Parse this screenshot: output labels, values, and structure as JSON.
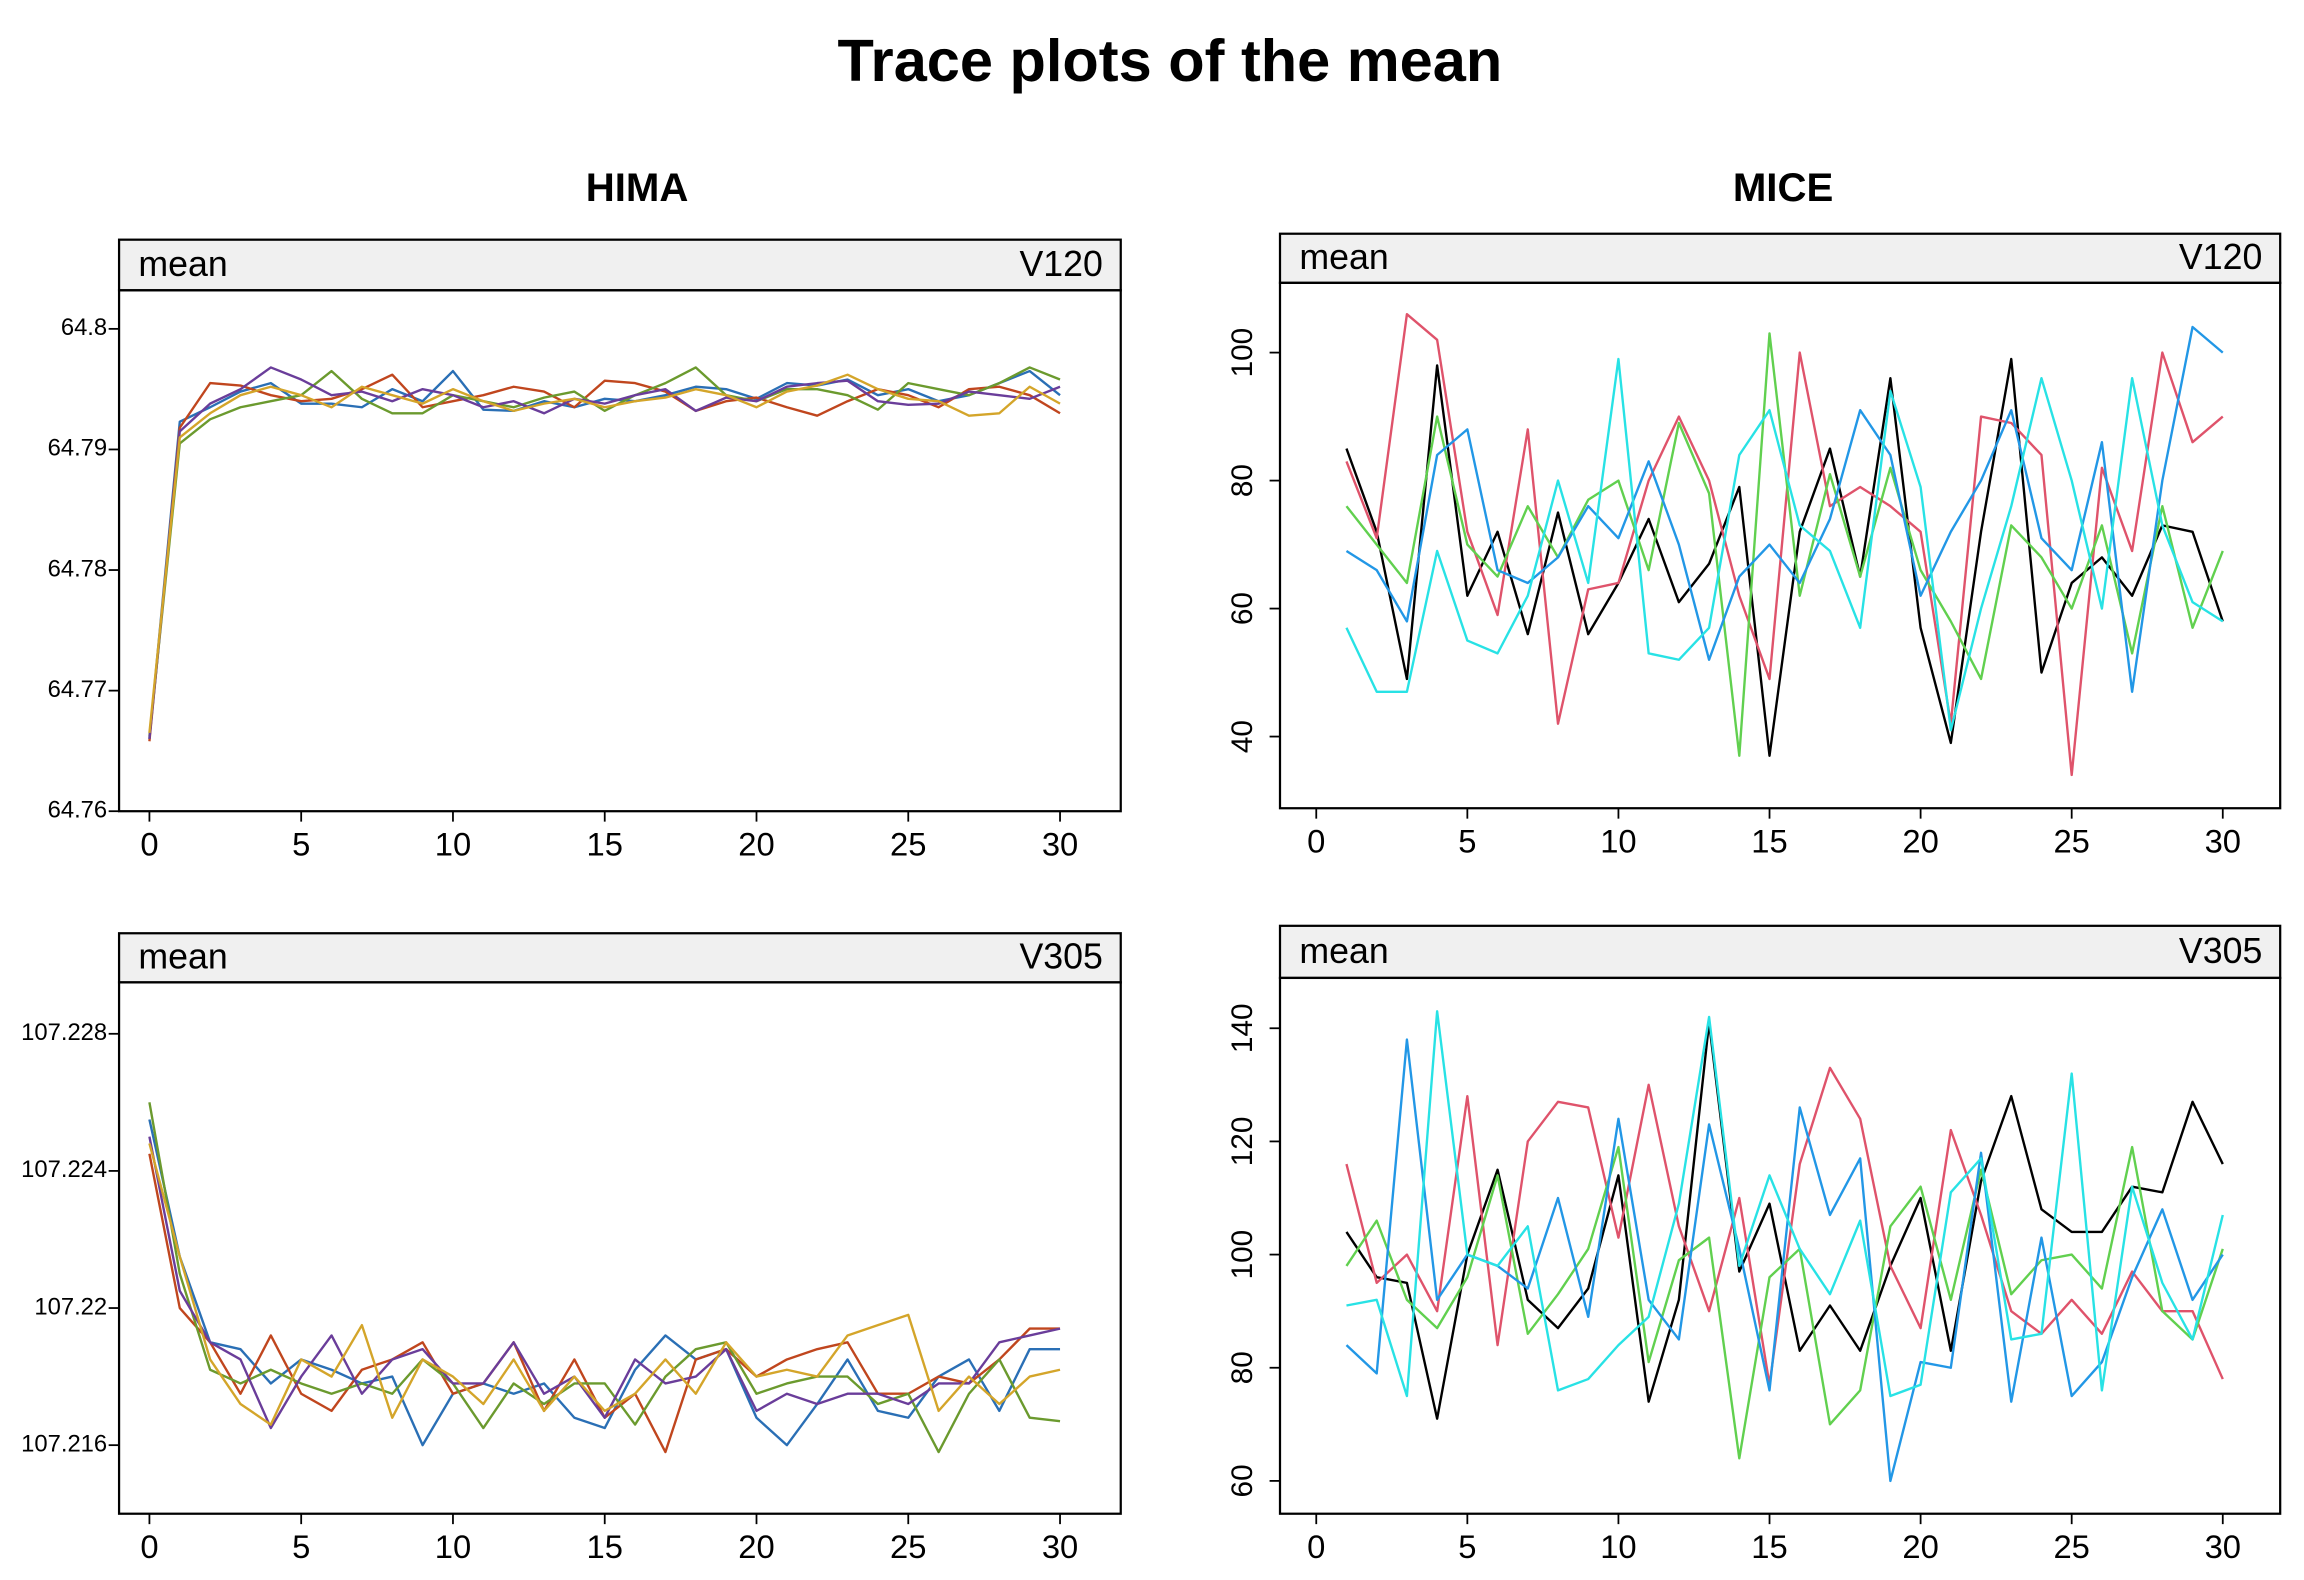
{
  "title": "Trace plots of the mean",
  "column_titles": [
    "HIMA",
    "MICE"
  ],
  "chart_data": [
    {
      "type": "line",
      "strip_left": "mean",
      "strip_right": "V120",
      "x": [
        0,
        1,
        2,
        3,
        4,
        5,
        6,
        7,
        8,
        9,
        10,
        11,
        12,
        13,
        14,
        15,
        16,
        17,
        18,
        19,
        20,
        21,
        22,
        23,
        24,
        25,
        26,
        27,
        28,
        29,
        30
      ],
      "xlim": [
        -1,
        32
      ],
      "xticks": [
        0,
        5,
        10,
        15,
        20,
        25,
        30
      ],
      "ylim": [
        64.76,
        64.8032
      ],
      "yticks": [
        64.76,
        64.77,
        64.78,
        64.79,
        64.8
      ],
      "series": [
        {
          "color": "#2a6fb5",
          "values": [
            64.766,
            64.7923,
            64.7935,
            64.7948,
            64.7955,
            64.7938,
            64.7938,
            64.7935,
            64.795,
            64.794,
            64.7965,
            64.7933,
            64.7932,
            64.794,
            64.7935,
            64.7942,
            64.794,
            64.7945,
            64.7952,
            64.795,
            64.7942,
            64.7955,
            64.7953,
            64.7958,
            64.7945,
            64.795,
            64.794,
            64.7945,
            64.7955,
            64.7965,
            64.7945
          ]
        },
        {
          "color": "#c0461e",
          "values": [
            64.7658,
            64.7918,
            64.7955,
            64.7953,
            64.7945,
            64.794,
            64.7942,
            64.795,
            64.7962,
            64.7935,
            64.794,
            64.7945,
            64.7952,
            64.7948,
            64.7935,
            64.7957,
            64.7955,
            64.7948,
            64.7932,
            64.794,
            64.7943,
            64.7935,
            64.7928,
            64.794,
            64.795,
            64.7945,
            64.7935,
            64.795,
            64.7952,
            64.7945,
            64.793
          ]
        },
        {
          "color": "#6b9a2e",
          "values": [
            64.7662,
            64.7905,
            64.7925,
            64.7935,
            64.794,
            64.7945,
            64.7965,
            64.7942,
            64.793,
            64.793,
            64.7945,
            64.794,
            64.7935,
            64.7943,
            64.7948,
            64.7932,
            64.7945,
            64.7955,
            64.7968,
            64.7945,
            64.794,
            64.795,
            64.795,
            64.7945,
            64.7933,
            64.7955,
            64.795,
            64.7945,
            64.7955,
            64.7968,
            64.7958
          ]
        },
        {
          "color": "#6a3d9a",
          "values": [
            64.766,
            64.7915,
            64.7938,
            64.795,
            64.7968,
            64.7958,
            64.7945,
            64.7948,
            64.794,
            64.795,
            64.7945,
            64.7935,
            64.794,
            64.793,
            64.7942,
            64.7938,
            64.7945,
            64.795,
            64.7932,
            64.7943,
            64.794,
            64.7952,
            64.7955,
            64.7957,
            64.794,
            64.7937,
            64.7938,
            64.7948,
            64.7945,
            64.7942,
            64.7952
          ]
        },
        {
          "color": "#d4a52a",
          "values": [
            64.7665,
            64.791,
            64.793,
            64.7945,
            64.7952,
            64.7945,
            64.7935,
            64.7952,
            64.7945,
            64.7938,
            64.795,
            64.794,
            64.7932,
            64.7938,
            64.7942,
            64.7935,
            64.794,
            64.7943,
            64.795,
            64.7945,
            64.7935,
            64.7948,
            64.7953,
            64.7962,
            64.795,
            64.7942,
            64.794,
            64.7928,
            64.793,
            64.7952,
            64.7938
          ]
        }
      ]
    },
    {
      "type": "line",
      "strip_left": "mean",
      "strip_right": "V120",
      "x": [
        1,
        2,
        3,
        4,
        5,
        6,
        7,
        8,
        9,
        10,
        11,
        12,
        13,
        14,
        15,
        16,
        17,
        18,
        19,
        20,
        21,
        22,
        23,
        24,
        25,
        26,
        27,
        28,
        29,
        30
      ],
      "xlim": [
        -1.2,
        31.9
      ],
      "xticks": [
        0,
        5,
        10,
        15,
        20,
        25,
        30
      ],
      "ylim": [
        28.8,
        110.9
      ],
      "yticks": [
        40,
        60,
        80,
        100
      ],
      "series": [
        {
          "color": "#000000",
          "values": [
            85,
            72,
            49,
            98,
            62,
            72,
            56,
            75,
            56,
            64,
            74,
            61,
            67,
            79,
            37,
            72,
            85,
            65,
            96,
            57,
            39,
            72,
            99,
            50,
            64,
            68,
            62,
            73,
            72,
            58
          ]
        },
        {
          "color": "#df536b",
          "values": [
            83,
            71,
            106,
            102,
            72,
            59,
            88,
            42,
            63,
            64,
            80,
            90,
            80,
            62,
            49,
            100,
            76,
            79,
            76,
            72,
            42,
            90,
            89,
            84,
            34,
            82,
            69,
            100,
            86,
            90
          ]
        },
        {
          "color": "#61d04f",
          "values": [
            76,
            70,
            64,
            90,
            70,
            65,
            76,
            68,
            77,
            80,
            66,
            89,
            78,
            37,
            103,
            62,
            81,
            65,
            82,
            66,
            58,
            49,
            73,
            68,
            60,
            73,
            53,
            76,
            57,
            69
          ]
        },
        {
          "color": "#2297e6",
          "values": [
            69,
            66,
            58,
            84,
            88,
            66,
            64,
            68,
            76,
            71,
            83,
            70,
            52,
            65,
            70,
            64,
            74,
            91,
            84,
            62,
            72,
            80,
            91,
            71,
            66,
            86,
            47,
            80,
            104,
            100
          ]
        },
        {
          "color": "#28e2e5",
          "values": [
            57,
            47,
            47,
            69,
            55,
            53,
            62,
            80,
            64,
            99,
            53,
            52,
            57,
            84,
            91,
            73,
            69,
            57,
            94,
            79,
            41,
            60,
            76,
            96,
            80,
            60,
            96,
            73,
            61,
            58
          ]
        }
      ]
    },
    {
      "type": "line",
      "strip_left": "mean",
      "strip_right": "V305",
      "x": [
        0,
        1,
        2,
        3,
        4,
        5,
        6,
        7,
        8,
        9,
        10,
        11,
        12,
        13,
        14,
        15,
        16,
        17,
        18,
        19,
        20,
        21,
        22,
        23,
        24,
        25,
        26,
        27,
        28,
        29,
        30
      ],
      "xlim": [
        -1,
        32
      ],
      "xticks": [
        0,
        5,
        10,
        15,
        20,
        25,
        30
      ],
      "ylim": [
        107.214,
        107.2295
      ],
      "yticks": [
        107.216,
        107.22,
        107.224,
        107.228
      ],
      "series": [
        {
          "color": "#2a6fb5",
          "values": [
            107.2255,
            107.2215,
            107.219,
            107.2188,
            107.2178,
            107.2185,
            107.2182,
            107.2178,
            107.218,
            107.216,
            107.2175,
            107.2178,
            107.2175,
            107.2178,
            107.2168,
            107.2165,
            107.2182,
            107.2192,
            107.2185,
            107.2188,
            107.2168,
            107.216,
            107.2172,
            107.2185,
            107.217,
            107.2168,
            107.218,
            107.2185,
            107.217,
            107.2188,
            107.2188
          ]
        },
        {
          "color": "#c0461e",
          "values": [
            107.2245,
            107.22,
            107.219,
            107.2175,
            107.2192,
            107.2175,
            107.217,
            107.2182,
            107.2185,
            107.219,
            107.2175,
            107.2178,
            107.219,
            107.217,
            107.2185,
            107.2168,
            107.2175,
            107.2158,
            107.2185,
            107.2188,
            107.218,
            107.2185,
            107.2188,
            107.219,
            107.2175,
            107.2175,
            107.218,
            107.2178,
            107.2185,
            107.2194,
            107.2194
          ]
        },
        {
          "color": "#6b9a2e",
          "values": [
            107.226,
            107.221,
            107.2182,
            107.2178,
            107.2182,
            107.2178,
            107.2175,
            107.2178,
            107.2175,
            107.2185,
            107.2178,
            107.2165,
            107.2178,
            107.2172,
            107.2178,
            107.2178,
            107.2166,
            107.218,
            107.2188,
            107.219,
            107.2175,
            107.2178,
            107.218,
            107.218,
            107.2172,
            107.2175,
            107.2158,
            107.2175,
            107.2185,
            107.2168,
            107.2167
          ]
        },
        {
          "color": "#6a3d9a",
          "values": [
            107.225,
            107.2205,
            107.219,
            107.2185,
            107.2165,
            107.218,
            107.2192,
            107.2175,
            107.2185,
            107.2188,
            107.2178,
            107.2178,
            107.219,
            107.2175,
            107.218,
            107.2168,
            107.2185,
            107.2178,
            107.218,
            107.2188,
            107.217,
            107.2175,
            107.2172,
            107.2175,
            107.2175,
            107.2172,
            107.2178,
            107.2178,
            107.219,
            107.2192,
            107.2194
          ]
        },
        {
          "color": "#d4a52a",
          "values": [
            107.2248,
            107.2215,
            107.2185,
            107.2172,
            107.2166,
            107.2185,
            107.218,
            107.2195,
            107.2168,
            107.2185,
            107.218,
            107.2172,
            107.2185,
            107.217,
            107.218,
            107.217,
            107.2175,
            107.2185,
            107.2175,
            107.219,
            107.218,
            107.2182,
            107.218,
            107.2192,
            107.2195,
            107.2198,
            107.217,
            107.218,
            107.2172,
            107.218,
            107.2182
          ]
        }
      ]
    },
    {
      "type": "line",
      "strip_left": "mean",
      "strip_right": "V305",
      "x": [
        1,
        2,
        3,
        4,
        5,
        6,
        7,
        8,
        9,
        10,
        11,
        12,
        13,
        14,
        15,
        16,
        17,
        18,
        19,
        20,
        21,
        22,
        23,
        24,
        25,
        26,
        27,
        28,
        29,
        30
      ],
      "xlim": [
        -1.2,
        31.9
      ],
      "xticks": [
        0,
        5,
        10,
        15,
        20,
        25,
        30
      ],
      "ylim": [
        54.2,
        148.9
      ],
      "yticks": [
        60,
        80,
        100,
        120,
        140
      ],
      "series": [
        {
          "color": "#000000",
          "values": [
            104,
            96,
            95,
            71,
            100,
            115,
            92,
            87,
            94,
            114,
            74,
            92,
            141,
            97,
            109,
            83,
            91,
            83,
            98,
            110,
            83,
            113,
            128,
            108,
            104,
            104,
            112,
            111,
            127,
            116
          ]
        },
        {
          "color": "#df536b",
          "values": [
            116,
            95,
            100,
            90,
            128,
            84,
            120,
            127,
            126,
            103,
            130,
            105,
            90,
            110,
            77,
            116,
            133,
            124,
            98,
            87,
            122,
            107,
            90,
            86,
            92,
            86,
            97,
            90,
            90,
            78
          ]
        },
        {
          "color": "#61d04f",
          "values": [
            98,
            106,
            92,
            87,
            96,
            114,
            86,
            93,
            101,
            119,
            81,
            99,
            103,
            64,
            96,
            101,
            70,
            76,
            105,
            112,
            92,
            115,
            93,
            99,
            100,
            94,
            119,
            90,
            85,
            101
          ]
        },
        {
          "color": "#2297e6",
          "values": [
            84,
            79,
            138,
            92,
            100,
            98,
            94,
            110,
            89,
            124,
            92,
            85,
            123,
            101,
            76,
            126,
            107,
            117,
            60,
            81,
            80,
            118,
            74,
            103,
            75,
            81,
            96,
            108,
            92,
            100
          ]
        },
        {
          "color": "#28e2e5",
          "values": [
            91,
            92,
            75,
            143,
            100,
            98,
            105,
            76,
            78,
            84,
            89,
            109,
            142,
            98,
            114,
            101,
            93,
            106,
            75,
            77,
            111,
            117,
            85,
            86,
            132,
            76,
            112,
            95,
            85,
            107
          ]
        }
      ]
    }
  ]
}
